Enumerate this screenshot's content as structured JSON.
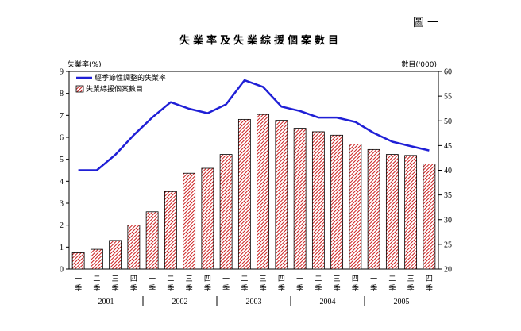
{
  "figure_label": "圖一",
  "chart_data": {
    "type": "bar+line",
    "title": "失業率及失業綜援個案數目",
    "left_axis_label": "失業率(%)",
    "right_axis_label": "數目('000)",
    "left_ylim": [
      0,
      9
    ],
    "right_ylim": [
      20,
      60
    ],
    "left_ticks": [
      "0",
      "1",
      "2",
      "3",
      "4",
      "5",
      "6",
      "7",
      "8",
      "9"
    ],
    "right_ticks": [
      "20",
      "25",
      "30",
      "35",
      "40",
      "45",
      "50",
      "55",
      "60"
    ],
    "quarter_labels": [
      [
        "一",
        "季"
      ],
      [
        "二",
        "季"
      ],
      [
        "三",
        "季"
      ],
      [
        "四",
        "季"
      ],
      [
        "一",
        "季"
      ],
      [
        "二",
        "季"
      ],
      [
        "三",
        "季"
      ],
      [
        "四",
        "季"
      ],
      [
        "一",
        "季"
      ],
      [
        "二",
        "季"
      ],
      [
        "三",
        "季"
      ],
      [
        "四",
        "季"
      ],
      [
        "一",
        "季"
      ],
      [
        "二",
        "季"
      ],
      [
        "三",
        "季"
      ],
      [
        "四",
        "季"
      ],
      [
        "一",
        "季"
      ],
      [
        "二",
        "季"
      ],
      [
        "三",
        "季"
      ],
      [
        "四",
        "季"
      ]
    ],
    "years": [
      "2001",
      "2002",
      "2003",
      "2004",
      "2005"
    ],
    "series": [
      {
        "name": "經季節性調整的失業率",
        "kind": "line",
        "axis": "left",
        "color": "#1f1fd6",
        "values": [
          4.5,
          4.5,
          5.2,
          6.1,
          6.9,
          7.6,
          7.3,
          7.1,
          7.5,
          8.6,
          8.3,
          7.4,
          7.2,
          6.9,
          6.9,
          6.7,
          6.2,
          5.8,
          5.6,
          5.4
        ]
      },
      {
        "name": "失業綜援個案數目",
        "kind": "bar",
        "axis": "right",
        "color": "#cc2222",
        "values": [
          23.3,
          24.0,
          25.8,
          28.9,
          31.6,
          35.7,
          39.4,
          40.4,
          43.2,
          50.3,
          51.3,
          50.1,
          48.5,
          47.8,
          47.1,
          45.3,
          44.2,
          43.2,
          43.0,
          41.3
        ]
      }
    ],
    "legend_position": "top-left"
  }
}
